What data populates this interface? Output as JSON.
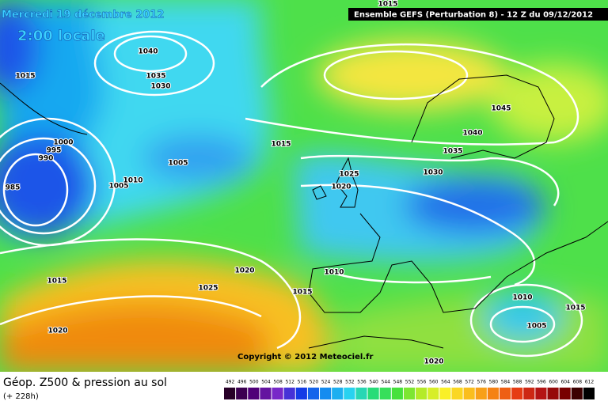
{
  "header": {
    "date": "Mercredi 19 décembre 2012",
    "time": "2:00 locale",
    "run": "Ensemble GEFS (Perturbation 8)  -  12 Z du 09/12/2012"
  },
  "copyright": "Copyright © 2012 Meteociel.fr",
  "footer": {
    "title": "Géop. Z500 & pression au sol",
    "lead": "(+ 228h)"
  },
  "isobar_labels": [
    1015,
    1040,
    1035,
    1030,
    1015,
    1000,
    995,
    990,
    985,
    1005,
    1005,
    1010,
    1015,
    1025,
    1020,
    1030,
    1035,
    1040,
    1045,
    1020,
    1025,
    1015,
    1020,
    1010,
    1015,
    1010,
    1015,
    1005,
    1020
  ],
  "scale": [
    492,
    496,
    500,
    504,
    508,
    512,
    516,
    520,
    524,
    528,
    532,
    536,
    540,
    544,
    548,
    552,
    556,
    560,
    564,
    568,
    572,
    576,
    580,
    584,
    588,
    592,
    596,
    600,
    604,
    608,
    612
  ]
}
